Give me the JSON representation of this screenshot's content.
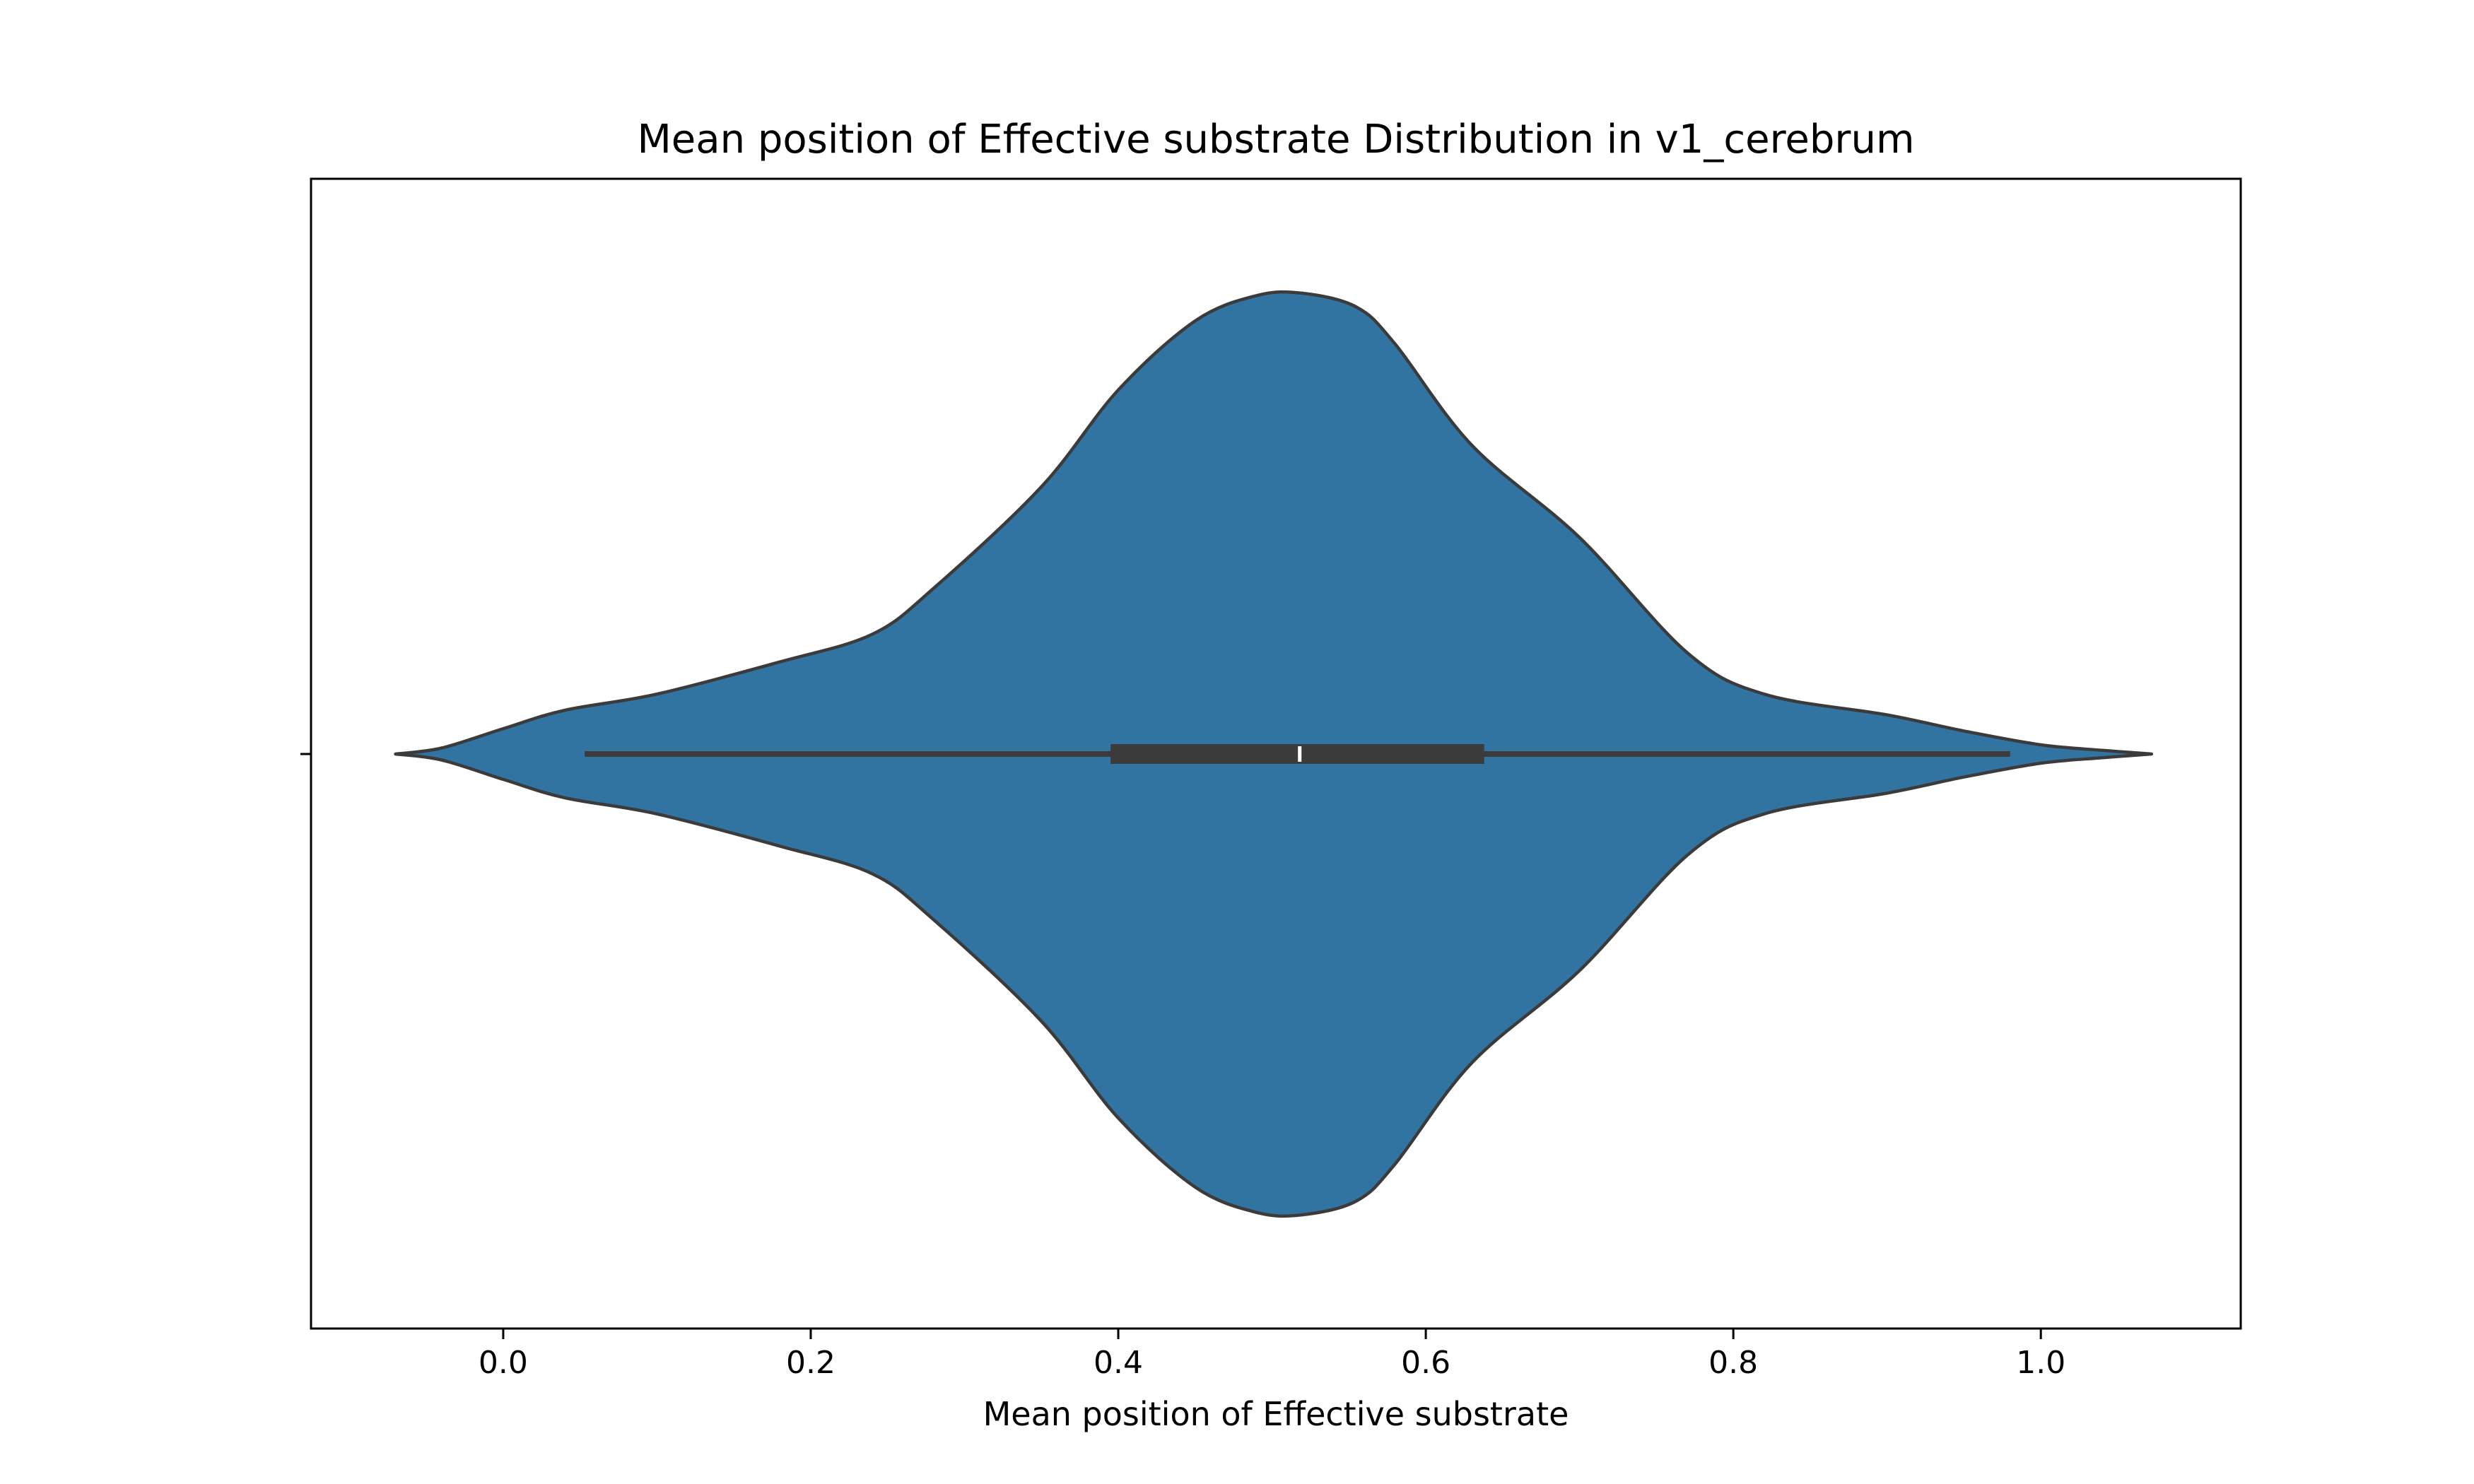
{
  "chart_data": {
    "type": "violin",
    "title": "Mean position of Effective substrate Distribution in v1_cerebrum",
    "xlabel": "Mean position of Effective substrate",
    "ylabel": "",
    "xlim": [
      -0.125,
      1.13
    ],
    "xticks": [
      0.0,
      0.2,
      0.4,
      0.6,
      0.8,
      1.0
    ],
    "xtick_labels": [
      "0.0",
      "0.2",
      "0.4",
      "0.6",
      "0.8",
      "1.0"
    ],
    "grid": false,
    "colors": {
      "violin_fill": "#3274a1",
      "violin_edge": "#3b3b3b",
      "box": "#3b3b3b",
      "median": "#ffffff"
    },
    "density_profile": {
      "x": [
        -0.07,
        -0.04,
        0.0,
        0.04,
        0.1,
        0.18,
        0.24,
        0.28,
        0.35,
        0.4,
        0.45,
        0.49,
        0.52,
        0.555,
        0.58,
        0.63,
        0.7,
        0.77,
        0.82,
        0.9,
        0.95,
        1.0,
        1.04,
        1.072
      ],
      "width": [
        0.0,
        0.013,
        0.055,
        0.095,
        0.13,
        0.2,
        0.26,
        0.36,
        0.58,
        0.79,
        0.94,
        0.995,
        1.0,
        0.97,
        0.89,
        0.67,
        0.47,
        0.22,
        0.13,
        0.085,
        0.05,
        0.02,
        0.008,
        0.0
      ]
    },
    "box": {
      "whisker_low": 0.053,
      "q1": 0.395,
      "median": 0.518,
      "q3": 0.638,
      "whisker_high": 0.98
    }
  }
}
